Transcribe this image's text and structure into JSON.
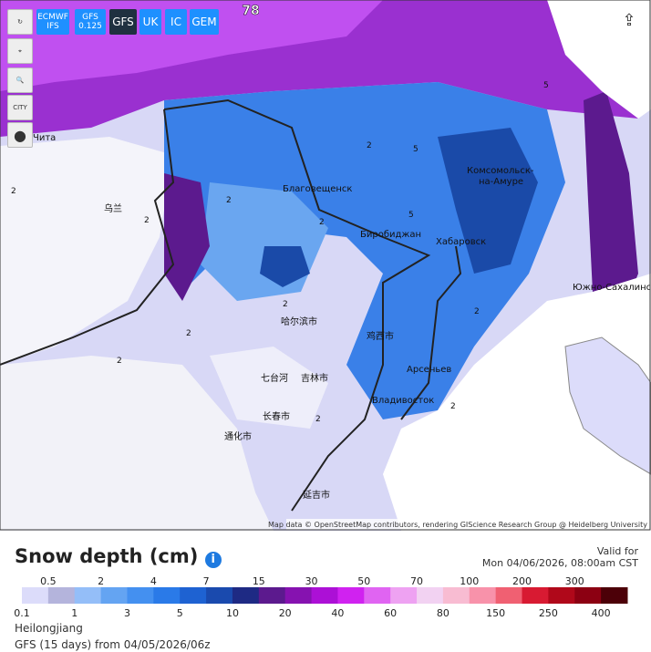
{
  "toolbar": {
    "buttons": [
      [
        "ECMWF",
        "IFS"
      ],
      [
        "GFS",
        "0.125"
      ],
      [
        "GFS"
      ],
      [
        "UK"
      ],
      [
        "IC"
      ],
      [
        "GEM"
      ]
    ],
    "city_icon": "CITY"
  },
  "run_marker": "78",
  "map": {
    "places": [
      "Чита",
      "Благовещенск",
      "Биробиджан",
      "Хабаровск",
      "Комсомольск-",
      "на-Амуре",
      "Южно-Сахалинск",
      "Арсеньев",
      "Владивосток",
      "哈尔滨市",
      "鸡西市",
      "七台河",
      "吉林市",
      "长春市",
      "通化市",
      "延吉市",
      "乌兰"
    ],
    "contour_labels": [
      "2",
      "2",
      "5",
      "2",
      "2",
      "2",
      "2",
      "5",
      "2",
      "5",
      "2",
      "2",
      "2",
      "2"
    ],
    "attribution": "Map data © OpenStreetMap contributors, rendering GIScience Research Group @ Heidelberg University"
  },
  "legend": {
    "title": "Snow depth (cm)",
    "valid_label": "Valid for",
    "valid_time": "Mon 04/06/2026, 08:00am CST",
    "scale": [
      {
        "value": 0.1,
        "color": "#dcdcfa"
      },
      {
        "value": 0.5,
        "color": "#b4b4dc"
      },
      {
        "value": 1,
        "color": "#94bef8"
      },
      {
        "value": 2,
        "color": "#64a4f2"
      },
      {
        "value": 3,
        "color": "#4490f0"
      },
      {
        "value": 4,
        "color": "#2a7ae8"
      },
      {
        "value": 5,
        "color": "#1e62d2"
      },
      {
        "value": 7,
        "color": "#1a4aae"
      },
      {
        "value": 10,
        "color": "#1e2a84"
      },
      {
        "value": 15,
        "color": "#5c1a8e"
      },
      {
        "value": 20,
        "color": "#8612b0"
      },
      {
        "value": 30,
        "color": "#ac10d6"
      },
      {
        "value": 40,
        "color": "#d022f0"
      },
      {
        "value": 50,
        "color": "#e064f2"
      },
      {
        "value": 60,
        "color": "#eea2f2"
      },
      {
        "value": 70,
        "color": "#f2d2f2"
      },
      {
        "value": 80,
        "color": "#f8bcd2"
      },
      {
        "value": 100,
        "color": "#f892aa"
      },
      {
        "value": 150,
        "color": "#f06072"
      },
      {
        "value": 200,
        "color": "#d81a32"
      },
      {
        "value": 250,
        "color": "#b0081a"
      },
      {
        "value": 300,
        "color": "#8c0012"
      },
      {
        "value": 400,
        "color": "#4c0008"
      }
    ]
  },
  "footer": {
    "region": "Heilongjiang",
    "run": "GFS (15 days) from 04/05/2026/06z"
  }
}
